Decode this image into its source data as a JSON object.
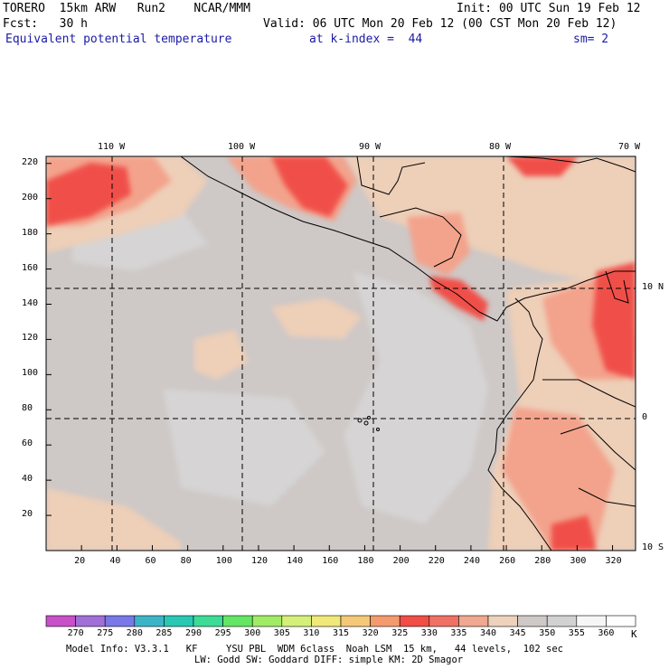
{
  "header": {
    "line1_left": "TORERO  15km ARW   Run2    NCAR/MMM",
    "line1_right": "Init: 00 UTC Sun 19 Feb 12",
    "line2_left": "Fcst:   30 h",
    "line2_right": "Valid: 06 UTC Mon 20 Feb 12 (00 CST Mon 20 Feb 12)",
    "field": "Equivalent potential temperature",
    "level": "at k-index =  44",
    "smooth": "sm= 2"
  },
  "map": {
    "top_lon_labels": [
      "110 W",
      "100 W",
      "90 W",
      "80 W",
      "70 W"
    ],
    "right_lat_labels": [
      "10 N",
      "0",
      "10 S"
    ],
    "y_grid_labels": [
      "220",
      "200",
      "180",
      "160",
      "140",
      "120",
      "100",
      "80",
      "60",
      "40",
      "20"
    ],
    "x_grid_labels": [
      "20",
      "40",
      "60",
      "80",
      "100",
      "120",
      "140",
      "160",
      "180",
      "200",
      "220",
      "240",
      "260",
      "280",
      "300",
      "320"
    ]
  },
  "colorbar": {
    "labels": [
      "270",
      "275",
      "280",
      "285",
      "290",
      "295",
      "300",
      "305",
      "310",
      "315",
      "320",
      "325",
      "330",
      "335",
      "340",
      "345",
      "350",
      "355",
      "360"
    ],
    "unit": "K",
    "colors": [
      "#c850c8",
      "#a070d8",
      "#7878e8",
      "#3cb4c8",
      "#28c8b4",
      "#3cdc96",
      "#64e664",
      "#a0ec64",
      "#d4f078",
      "#f0e878",
      "#f5c878",
      "#f59a6e",
      "#f04e46",
      "#f07064",
      "#f0a890",
      "#eed2bc",
      "#cec8c6",
      "#d2d2d2",
      "#f6f6f6",
      "#ffffff"
    ]
  },
  "footer": {
    "line1": "Model Info: V3.3.1   KF     YSU PBL  WDM 6class  Noah LSM  15 km,   44 levels,  102 sec",
    "line2": "LW: Godd SW: Goddard DIFF: simple KM: 2D Smagor"
  }
}
